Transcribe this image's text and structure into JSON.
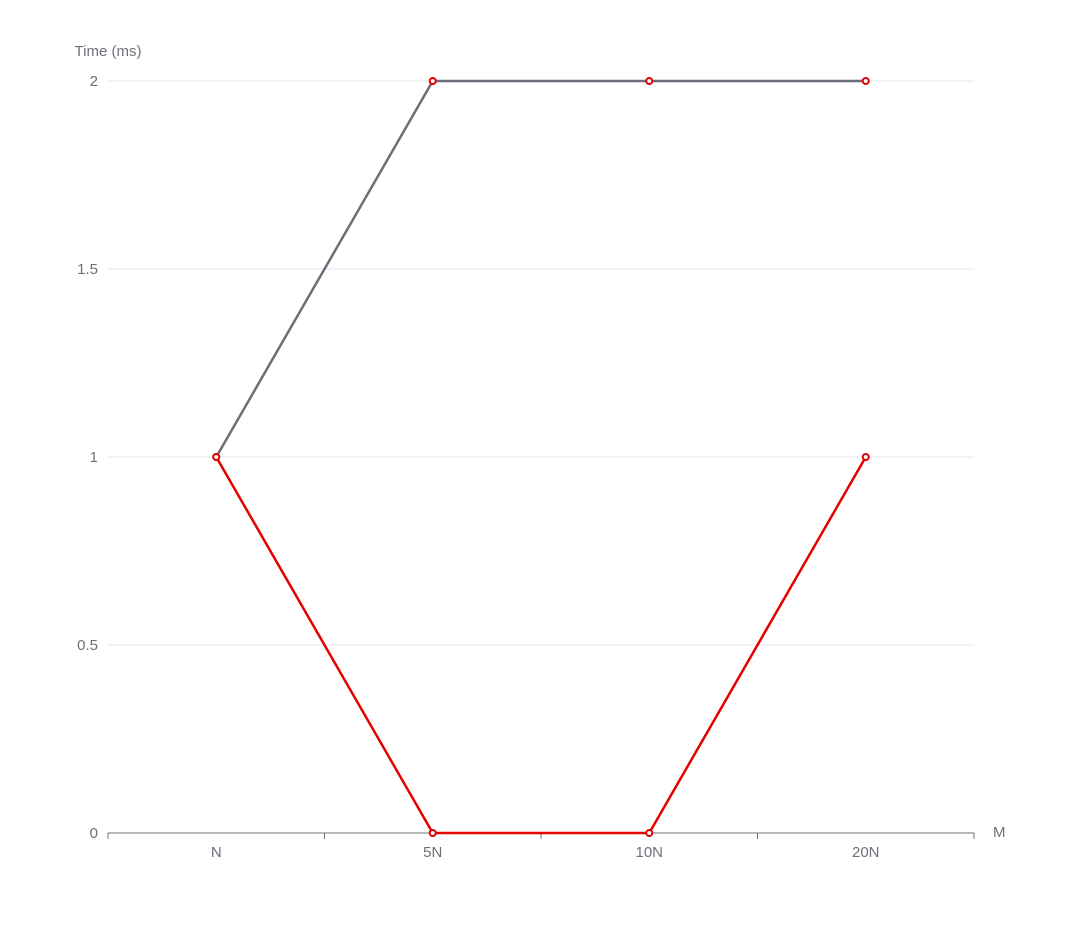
{
  "chart_data": {
    "type": "line",
    "categories": [
      "N",
      "5N",
      "10N",
      "20N"
    ],
    "series": [
      {
        "values": [
          1,
          2,
          2,
          2
        ],
        "line_color": "#6e6e78",
        "marker_color": "#e60000"
      },
      {
        "values": [
          1,
          0,
          0,
          1
        ],
        "line_color": "#e60000",
        "marker_color": "#e60000"
      }
    ],
    "xlabel": "M",
    "ylabel": "Time (ms)",
    "ylim": [
      0,
      2
    ],
    "yticks": [
      0,
      0.5,
      1,
      1.5,
      2
    ],
    "ytick_labels": [
      "0",
      "0.5",
      "1",
      "1.5",
      "2"
    ],
    "grid": true,
    "colors": {
      "axis": "#6e7079",
      "grid": "#e0e6f1",
      "text": "#6e7079"
    }
  }
}
